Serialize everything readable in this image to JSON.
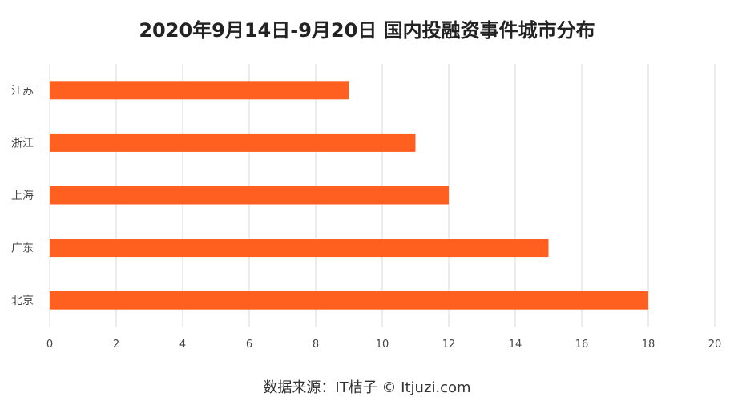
{
  "page": {
    "title": "2020年9月14日-9月20日 国内投融资事件城市分布",
    "source": "数据来源：IT桔子 © Itjuzi.com"
  },
  "colors": {
    "bar": "#FF5F1F",
    "grid": "#D9D9D9",
    "axis_text": "#444444"
  },
  "chart_data": {
    "type": "bar",
    "orientation": "horizontal",
    "title": "2020年9月14日-9月20日 国内投融资事件城市分布",
    "categories": [
      "江苏",
      "浙江",
      "上海",
      "广东",
      "北京"
    ],
    "values": [
      9,
      11,
      12,
      15,
      18
    ],
    "xlim": [
      0,
      20
    ],
    "xticks": [
      0,
      2,
      4,
      6,
      8,
      10,
      12,
      14,
      16,
      18,
      20
    ],
    "xlabel": "",
    "ylabel": "",
    "grid": true,
    "legend": "none"
  }
}
